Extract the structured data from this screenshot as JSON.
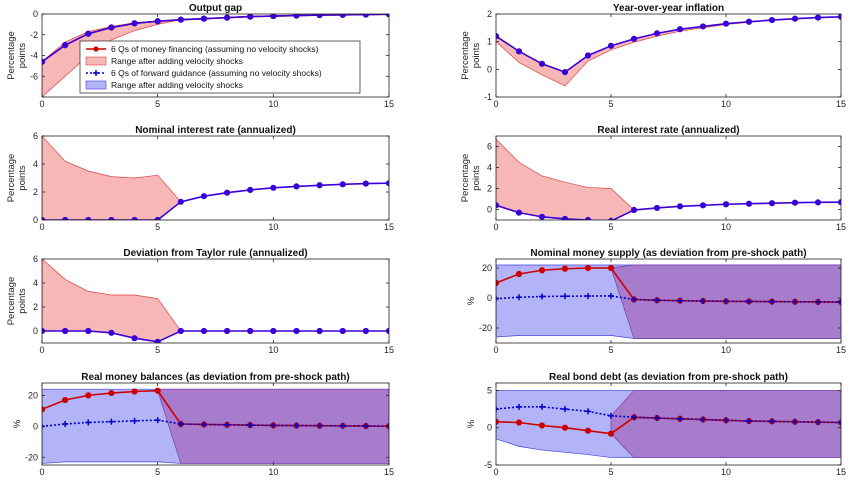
{
  "figure": {
    "legend": [
      {
        "label": "6 Qs of money financing (assuming no velocity shocks)",
        "kind": "line",
        "color": "#cc0000",
        "marker": "circle"
      },
      {
        "label": "Range after adding velocity shocks",
        "kind": "patch",
        "color": "#f7b7b7"
      },
      {
        "label": "6 Qs of forward guidance (assuming no velocity shocks)",
        "kind": "line",
        "color": "#0000cc",
        "marker": "plus"
      },
      {
        "label": "Range after adding velocity shocks",
        "kind": "patch",
        "color": "#b3b3f7"
      }
    ]
  },
  "chart_data": [
    {
      "type": "line",
      "title": "Output gap",
      "ylabel": "Percentage points",
      "x": [
        0,
        1,
        2,
        3,
        4,
        5,
        6,
        7,
        8,
        9,
        10,
        11,
        12,
        13,
        14,
        15
      ],
      "ylim": [
        -8,
        0
      ],
      "yticks": [
        -8,
        -6,
        -4,
        -2,
        0
      ],
      "yticklabels": [
        "",
        "-6",
        "-4",
        "-2",
        "0"
      ],
      "xticks": [
        0,
        5,
        10,
        15
      ],
      "series": [
        {
          "values": [
            -4.6,
            -3.0,
            -1.9,
            -1.3,
            -0.9,
            -0.7,
            -0.55,
            -0.45,
            -0.35,
            -0.25,
            -0.2,
            -0.15,
            -0.1,
            -0.08,
            -0.05,
            -0.03
          ],
          "color": "#cc0000",
          "marker": "circle"
        },
        {
          "values": [
            -4.6,
            -3.0,
            -1.9,
            -1.3,
            -0.9,
            -0.7,
            -0.55,
            -0.45,
            -0.35,
            -0.25,
            -0.2,
            -0.15,
            -0.1,
            -0.08,
            -0.05,
            -0.03
          ],
          "color": "#3a00d8",
          "marker": "circle"
        }
      ],
      "bands": [
        {
          "lower": [
            -8,
            -6.0,
            -4.0,
            -2.5,
            -1.6,
            -1.0,
            -0.55,
            -0.45,
            -0.35,
            -0.25,
            -0.2,
            -0.15,
            -0.1,
            -0.08,
            -0.05,
            -0.03
          ],
          "upper": [
            -4.6,
            -2.7,
            -1.7,
            -1.2,
            -0.85,
            -0.68,
            -0.55,
            -0.45,
            -0.35,
            -0.25,
            -0.2,
            -0.15,
            -0.1,
            -0.08,
            -0.05,
            -0.03
          ],
          "color": "#f7b7b7"
        }
      ]
    },
    {
      "type": "line",
      "title": "Year-over-year inflation",
      "ylabel": "Percentage points",
      "x": [
        0,
        1,
        2,
        3,
        4,
        5,
        6,
        7,
        8,
        9,
        10,
        11,
        12,
        13,
        14,
        15
      ],
      "ylim": [
        -1,
        2
      ],
      "yticks": [
        -1,
        0,
        1,
        2
      ],
      "yticklabels": [
        "-1",
        "0",
        "1",
        "2"
      ],
      "xticks": [
        0,
        5,
        10,
        15
      ],
      "series": [
        {
          "values": [
            1.2,
            0.65,
            0.2,
            -0.1,
            0.5,
            0.85,
            1.1,
            1.3,
            1.45,
            1.55,
            1.65,
            1.72,
            1.78,
            1.83,
            1.87,
            1.9
          ],
          "color": "#3a00d8",
          "marker": "circle"
        }
      ],
      "bands": [
        {
          "lower": [
            1.0,
            0.25,
            -0.2,
            -0.6,
            0.3,
            0.7,
            0.98,
            1.2,
            1.38,
            1.5,
            1.62,
            1.7,
            1.77,
            1.82,
            1.86,
            1.89
          ],
          "upper": [
            1.2,
            0.65,
            0.2,
            -0.1,
            0.5,
            0.85,
            1.1,
            1.3,
            1.45,
            1.55,
            1.65,
            1.72,
            1.78,
            1.83,
            1.87,
            1.9
          ],
          "color": "#f7b7b7"
        }
      ]
    },
    {
      "type": "line",
      "title": "Nominal interest rate (annualized)",
      "ylabel": "Percentage points",
      "x": [
        0,
        1,
        2,
        3,
        4,
        5,
        6,
        7,
        8,
        9,
        10,
        11,
        12,
        13,
        14,
        15
      ],
      "ylim": [
        0,
        6
      ],
      "yticks": [
        0,
        2,
        4,
        6
      ],
      "yticklabels": [
        "0",
        "2",
        "4",
        "6"
      ],
      "xticks": [
        0,
        5,
        10,
        15
      ],
      "series": [
        {
          "values": [
            0,
            0,
            0,
            0,
            0,
            0,
            1.3,
            1.7,
            1.95,
            2.15,
            2.3,
            2.4,
            2.48,
            2.55,
            2.6,
            2.63
          ],
          "color": "#3a00d8",
          "marker": "circle"
        }
      ],
      "bands": [
        {
          "lower": [
            0,
            0,
            0,
            0,
            0,
            0,
            1.3,
            1.7,
            1.95,
            2.15,
            2.3,
            2.4,
            2.48,
            2.55,
            2.6,
            2.63
          ],
          "upper": [
            6.0,
            4.2,
            3.5,
            3.1,
            3.0,
            3.2,
            1.3,
            1.7,
            1.95,
            2.15,
            2.3,
            2.4,
            2.48,
            2.55,
            2.6,
            2.63
          ],
          "color": "#f7b7b7"
        }
      ]
    },
    {
      "type": "line",
      "title": "Real interest rate (annualized)",
      "ylabel": "Percentage points",
      "x": [
        0,
        1,
        2,
        3,
        4,
        5,
        6,
        7,
        8,
        9,
        10,
        11,
        12,
        13,
        14,
        15
      ],
      "ylim": [
        -1,
        7
      ],
      "yticks": [
        0,
        2,
        4,
        6
      ],
      "yticklabels": [
        "0",
        "2",
        "4",
        "6"
      ],
      "xticks": [
        0,
        5,
        10,
        15
      ],
      "series": [
        {
          "values": [
            0.4,
            -0.3,
            -0.7,
            -0.9,
            -1.0,
            -1.1,
            -0.05,
            0.15,
            0.3,
            0.4,
            0.5,
            0.55,
            0.6,
            0.65,
            0.68,
            0.7
          ],
          "color": "#3a00d8",
          "marker": "circle"
        }
      ],
      "bands": [
        {
          "lower": [
            0.4,
            -0.3,
            -0.7,
            -0.9,
            -1.0,
            -1.1,
            -0.05,
            0.15,
            0.3,
            0.4,
            0.5,
            0.55,
            0.6,
            0.65,
            0.68,
            0.7
          ],
          "upper": [
            6.7,
            4.5,
            3.2,
            2.6,
            2.1,
            2.0,
            -0.05,
            0.15,
            0.3,
            0.4,
            0.5,
            0.55,
            0.6,
            0.65,
            0.68,
            0.7
          ],
          "color": "#f7b7b7"
        }
      ]
    },
    {
      "type": "line",
      "title": "Deviation from Taylor rule (annualized)",
      "ylabel": "Percentage points",
      "x": [
        0,
        1,
        2,
        3,
        4,
        5,
        6,
        7,
        8,
        9,
        10,
        11,
        12,
        13,
        14,
        15
      ],
      "ylim": [
        -1,
        6
      ],
      "yticks": [
        0,
        2,
        4,
        6
      ],
      "yticklabels": [
        "0",
        "2",
        "4",
        "6"
      ],
      "xticks": [
        0,
        5,
        10,
        15
      ],
      "series": [
        {
          "values": [
            0,
            0,
            0,
            -0.15,
            -0.6,
            -0.9,
            0,
            0,
            0,
            0,
            0,
            0,
            0,
            0,
            0,
            0
          ],
          "color": "#3a00d8",
          "marker": "circle"
        }
      ],
      "bands": [
        {
          "lower": [
            0,
            0,
            0,
            -0.15,
            -0.6,
            -0.9,
            0,
            0,
            0,
            0,
            0,
            0,
            0,
            0,
            0,
            0
          ],
          "upper": [
            6.0,
            4.3,
            3.3,
            3.0,
            3.0,
            2.7,
            0,
            0,
            0,
            0,
            0,
            0,
            0,
            0,
            0,
            0
          ],
          "color": "#f7b7b7"
        }
      ]
    },
    {
      "type": "line",
      "title": "Nominal money supply (as deviation from pre-shock path)",
      "ylabel": "%",
      "x": [
        0,
        1,
        2,
        3,
        4,
        5,
        6,
        7,
        8,
        9,
        10,
        11,
        12,
        13,
        14,
        15
      ],
      "ylim": [
        -30,
        26
      ],
      "yticks": [
        -20,
        0,
        20
      ],
      "yticklabels": [
        "-20",
        "0",
        "20"
      ],
      "xticks": [
        0,
        5,
        10,
        15
      ],
      "series": [
        {
          "values": [
            10,
            16,
            18.5,
            19.5,
            20,
            20,
            -1,
            -1.5,
            -1.8,
            -2,
            -2.2,
            -2.3,
            -2.4,
            -2.5,
            -2.6,
            -2.7
          ],
          "color": "#cc0000",
          "marker": "circle"
        },
        {
          "values": [
            -0.5,
            0.5,
            1,
            1.2,
            1.3,
            1.4,
            -1,
            -1.5,
            -1.8,
            -2,
            -2.2,
            -2.3,
            -2.4,
            -2.5,
            -2.6,
            -2.7
          ],
          "color": "#0000cc",
          "marker": "plus"
        }
      ],
      "bands": [
        {
          "lower": [
            -26,
            -25,
            -25,
            -25,
            -25,
            -25,
            -27,
            -27,
            -27,
            -27,
            -27,
            -27,
            -27,
            -27,
            -27,
            -27
          ],
          "upper": [
            22,
            22,
            22,
            22,
            22,
            22,
            22,
            22,
            22,
            22,
            22,
            22,
            22,
            22,
            22,
            22
          ],
          "color": "#b3b3f7"
        },
        {
          "lower": [
            null,
            null,
            null,
            null,
            null,
            20,
            -27,
            -27,
            -27,
            -27,
            -27,
            -27,
            -27,
            -27,
            -27,
            -27
          ],
          "upper": [
            null,
            null,
            null,
            null,
            null,
            20,
            22,
            22,
            22,
            22,
            22,
            22,
            22,
            22,
            22,
            22
          ],
          "color": "#a77ccd"
        }
      ]
    },
    {
      "type": "line",
      "title": "Real money balances (as deviation from pre-shock path)",
      "ylabel": "%",
      "x": [
        0,
        1,
        2,
        3,
        4,
        5,
        6,
        7,
        8,
        9,
        10,
        11,
        12,
        13,
        14,
        15
      ],
      "ylim": [
        -25,
        28
      ],
      "yticks": [
        -20,
        0,
        20
      ],
      "yticklabels": [
        "-20",
        "0",
        "20"
      ],
      "xticks": [
        0,
        5,
        10,
        15
      ],
      "series": [
        {
          "values": [
            11,
            17,
            20,
            21.5,
            22.5,
            23,
            1.5,
            1.2,
            1,
            0.8,
            0.6,
            0.5,
            0.4,
            0.3,
            0.2,
            0.1
          ],
          "color": "#cc0000",
          "marker": "circle"
        },
        {
          "values": [
            0,
            1.5,
            2.5,
            3,
            3.5,
            4,
            1.5,
            1.2,
            1,
            0.8,
            0.6,
            0.5,
            0.4,
            0.3,
            0.2,
            0.1
          ],
          "color": "#0000cc",
          "marker": "plus"
        }
      ],
      "bands": [
        {
          "lower": [
            -24,
            -23,
            -23,
            -23,
            -23,
            -23,
            -24,
            -24,
            -24,
            -24,
            -24,
            -24,
            -24,
            -24,
            -24,
            -24
          ],
          "upper": [
            24,
            24,
            24,
            24,
            24,
            24,
            24,
            24,
            24,
            24,
            24,
            24,
            24,
            24,
            24,
            24
          ],
          "color": "#b3b3f7"
        },
        {
          "lower": [
            null,
            null,
            null,
            null,
            null,
            23,
            -24,
            -24,
            -24,
            -24,
            -24,
            -24,
            -24,
            -24,
            -24,
            -24
          ],
          "upper": [
            null,
            null,
            null,
            null,
            null,
            24,
            24,
            24,
            24,
            24,
            24,
            24,
            24,
            24,
            24,
            24
          ],
          "color": "#a77ccd"
        }
      ]
    },
    {
      "type": "line",
      "title": "Real bond debt (as deviation from pre-shock path)",
      "ylabel": "%",
      "x": [
        0,
        1,
        2,
        3,
        4,
        5,
        6,
        7,
        8,
        9,
        10,
        11,
        12,
        13,
        14,
        15
      ],
      "ylim": [
        -5,
        6
      ],
      "yticks": [
        -5,
        0,
        5
      ],
      "yticklabels": [
        "-5",
        "0",
        "5"
      ],
      "xticks": [
        0,
        5,
        10,
        15
      ],
      "series": [
        {
          "values": [
            0.8,
            0.7,
            0.3,
            0,
            -0.4,
            -0.8,
            1.4,
            1.3,
            1.2,
            1.1,
            1.0,
            0.9,
            0.85,
            0.8,
            0.75,
            0.7
          ],
          "color": "#cc0000",
          "marker": "circle"
        },
        {
          "values": [
            2.5,
            2.8,
            2.8,
            2.5,
            2.2,
            1.6,
            1.4,
            1.3,
            1.2,
            1.1,
            1.0,
            0.9,
            0.85,
            0.8,
            0.75,
            0.7
          ],
          "color": "#0000cc",
          "marker": "plus"
        }
      ],
      "bands": [
        {
          "lower": [
            -1.5,
            -2.5,
            -3,
            -3.3,
            -3.6,
            -4,
            -4,
            -4,
            -4,
            -4,
            -4,
            -4,
            -4,
            -4,
            -4,
            -4
          ],
          "upper": [
            5,
            5,
            5,
            5,
            5,
            5,
            5,
            5,
            5,
            5,
            5,
            5,
            5,
            5,
            5,
            5
          ],
          "color": "#b3b3f7"
        },
        {
          "lower": [
            null,
            null,
            null,
            null,
            null,
            -0.8,
            -4,
            -4,
            -4,
            -4,
            -4,
            -4,
            -4,
            -4,
            -4,
            -4
          ],
          "upper": [
            null,
            null,
            null,
            null,
            null,
            1.6,
            5,
            5,
            5,
            5,
            5,
            5,
            5,
            5,
            5,
            5
          ],
          "color": "#a77ccd"
        }
      ]
    }
  ]
}
